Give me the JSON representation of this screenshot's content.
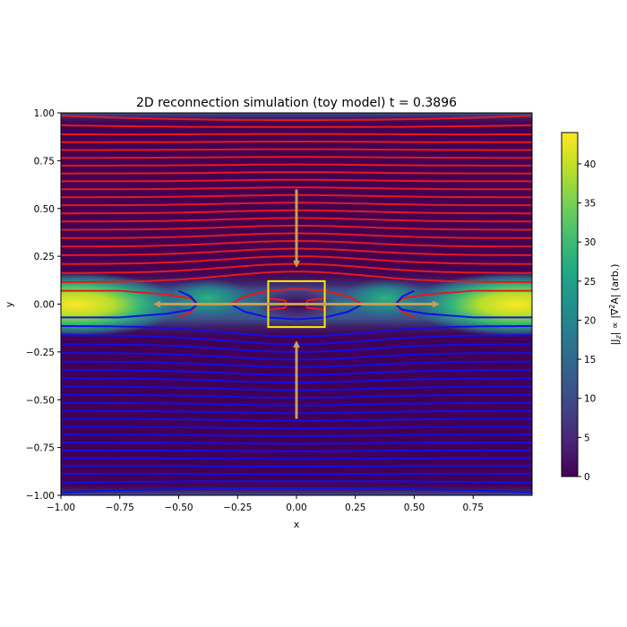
{
  "chart_data": {
    "type": "heatmap",
    "title": "2D reconnection simulation (toy model)   t = 0.3896",
    "xlabel": "x",
    "ylabel": "y",
    "xlim": [
      -1.0,
      1.0
    ],
    "ylim": [
      -1.0,
      1.0
    ],
    "xticks": [
      -1.0,
      -0.75,
      -0.5,
      -0.25,
      0.0,
      0.25,
      0.5,
      0.75
    ],
    "xtick_labels": [
      "−1.00",
      "−0.75",
      "−0.50",
      "−0.25",
      "0.00",
      "0.25",
      "0.50",
      "0.75"
    ],
    "yticks": [
      1.0,
      0.75,
      0.5,
      0.25,
      0.0,
      -0.25,
      -0.5,
      -0.75,
      -1.0
    ],
    "ytick_labels": [
      "1.00",
      "0.75",
      "0.50",
      "0.25",
      "0.00",
      "−0.25",
      "−0.50",
      "−0.75",
      "−1.00"
    ],
    "colorbar": {
      "label": "|J_z| ∝ |∇²A| (arb.)",
      "label_parts": [
        "|J",
        "z",
        "| ∝ |∇",
        "2",
        "A| (arb.)"
      ],
      "range": [
        0,
        44
      ],
      "ticks": [
        0,
        5,
        10,
        15,
        20,
        25,
        30,
        35,
        40
      ],
      "tick_labels": [
        "0",
        "5",
        "10",
        "15",
        "20",
        "25",
        "30",
        "35",
        "40"
      ],
      "colormap": "viridis"
    },
    "current_sheet": {
      "y_center": 0.0,
      "half_width": 0.1,
      "peak_value": 44,
      "edge_peak_x": [
        -1.0,
        1.0
      ],
      "central_minimum_x": 0.0
    },
    "field_lines": {
      "upper_color": "#e41a1c",
      "lower_color": "#1010e8",
      "upper_y0": [
        0.97,
        0.93,
        0.89,
        0.85,
        0.81,
        0.77,
        0.73,
        0.69,
        0.65,
        0.61,
        0.57,
        0.53,
        0.49,
        0.45,
        0.41,
        0.37,
        0.33,
        0.29,
        0.25,
        0.21,
        0.17
      ],
      "lower_y0": [
        -0.97,
        -0.93,
        -0.89,
        -0.85,
        -0.81,
        -0.77,
        -0.73,
        -0.69,
        -0.65,
        -0.61,
        -0.57,
        -0.53,
        -0.49,
        -0.45,
        -0.41,
        -0.37,
        -0.33,
        -0.29,
        -0.25,
        -0.21,
        -0.17
      ]
    },
    "diffusion_region": {
      "x": [
        -0.12,
        0.12
      ],
      "y": [
        -0.12,
        0.12
      ],
      "color": "#ffea00"
    },
    "flow_arrows": {
      "color": "#c8a050",
      "inflow": [
        {
          "from": [
            0.0,
            0.6
          ],
          "to": [
            0.0,
            0.2
          ]
        },
        {
          "from": [
            0.0,
            -0.6
          ],
          "to": [
            0.0,
            -0.2
          ]
        }
      ],
      "outflow": [
        {
          "from": [
            0.0,
            0.0
          ],
          "to": [
            -0.6,
            0.0
          ]
        },
        {
          "from": [
            0.0,
            0.0
          ],
          "to": [
            0.6,
            0.0
          ]
        }
      ]
    }
  }
}
